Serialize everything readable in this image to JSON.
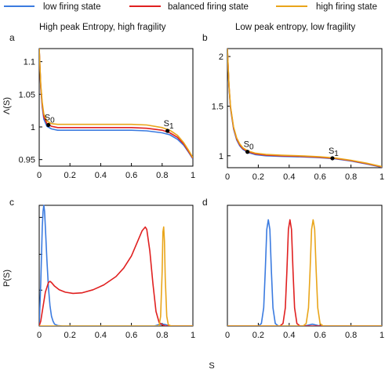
{
  "legend": [
    {
      "label": "low firing state",
      "color": "#3b7be0"
    },
    {
      "label": "balanced firing state",
      "color": "#e02020"
    },
    {
      "label": "high firing state",
      "color": "#e9a51a"
    }
  ],
  "shared_xlabel": "S",
  "chart_data": [
    {
      "panel": "a",
      "type": "line",
      "title": "High peak Entropy, high fragility",
      "ylabel": "Λ(S)",
      "xlim": [
        0,
        1
      ],
      "ylim": [
        0.94,
        1.12
      ],
      "xticks": [
        "0",
        "0.2",
        "0.4",
        "0.6",
        "0.8",
        "1"
      ],
      "yticks": [
        "0.95",
        "1",
        "1.05",
        "1.1"
      ],
      "points": [
        {
          "label": "S",
          "sub": "0",
          "x": 0.06,
          "y": 1.003
        },
        {
          "label": "S",
          "sub": "1",
          "x": 0.835,
          "y": 0.994
        }
      ],
      "series": [
        {
          "name": "low firing state",
          "color": "#3b7be0",
          "x": [
            0,
            0.01,
            0.02,
            0.03,
            0.05,
            0.08,
            0.12,
            0.2,
            0.4,
            0.6,
            0.7,
            0.8,
            0.85,
            0.9,
            0.94,
            0.97,
            1.0
          ],
          "y": [
            1.12,
            1.06,
            1.03,
            1.012,
            1.001,
            0.997,
            0.995,
            0.995,
            0.995,
            0.995,
            0.994,
            0.991,
            0.988,
            0.981,
            0.972,
            0.962,
            0.951
          ]
        },
        {
          "name": "balanced firing state",
          "color": "#e02020",
          "x": [
            0,
            0.01,
            0.02,
            0.03,
            0.05,
            0.08,
            0.12,
            0.2,
            0.4,
            0.6,
            0.7,
            0.8,
            0.85,
            0.9,
            0.94,
            0.97,
            1.0
          ],
          "y": [
            1.12,
            1.062,
            1.033,
            1.016,
            1.005,
            1.001,
            0.999,
            0.999,
            0.999,
            0.999,
            0.998,
            0.995,
            0.991,
            0.984,
            0.974,
            0.963,
            0.952
          ]
        },
        {
          "name": "high firing state",
          "color": "#e9a51a",
          "x": [
            0,
            0.01,
            0.02,
            0.03,
            0.05,
            0.08,
            0.12,
            0.2,
            0.4,
            0.6,
            0.7,
            0.8,
            0.85,
            0.9,
            0.94,
            0.97,
            1.0
          ],
          "y": [
            1.12,
            1.065,
            1.037,
            1.02,
            1.009,
            1.005,
            1.004,
            1.004,
            1.004,
            1.004,
            1.003,
            0.999,
            0.995,
            0.987,
            0.976,
            0.965,
            0.953
          ]
        }
      ]
    },
    {
      "panel": "b",
      "type": "line",
      "title": "Low peak entropy, low fragility",
      "ylabel": "",
      "xlim": [
        0,
        1
      ],
      "ylim": [
        0.88,
        2.08
      ],
      "xticks": [
        "0",
        "0.2",
        "0.4",
        "0.6",
        "0.8",
        "1"
      ],
      "yticks": [
        "1",
        "1.5",
        "2"
      ],
      "points": [
        {
          "label": "S",
          "sub": "0",
          "x": 0.13,
          "y": 1.04
        },
        {
          "label": "S",
          "sub": "1",
          "x": 0.68,
          "y": 0.975
        }
      ],
      "series": [
        {
          "name": "low firing state",
          "color": "#3b7be0",
          "x": [
            0,
            0.01,
            0.02,
            0.04,
            0.06,
            0.08,
            0.1,
            0.13,
            0.18,
            0.25,
            0.35,
            0.5,
            0.6,
            0.7,
            0.8,
            0.9,
            1.0
          ],
          "y": [
            2.08,
            1.7,
            1.48,
            1.27,
            1.16,
            1.1,
            1.065,
            1.035,
            1.012,
            1.0,
            0.994,
            0.988,
            0.981,
            0.969,
            0.947,
            0.918,
            0.885
          ]
        },
        {
          "name": "balanced firing state",
          "color": "#e02020",
          "x": [
            0,
            0.01,
            0.02,
            0.04,
            0.06,
            0.08,
            0.1,
            0.13,
            0.18,
            0.25,
            0.35,
            0.5,
            0.6,
            0.7,
            0.8,
            0.9,
            1.0
          ],
          "y": [
            2.08,
            1.71,
            1.49,
            1.28,
            1.17,
            1.11,
            1.073,
            1.043,
            1.02,
            1.007,
            1.0,
            0.993,
            0.985,
            0.973,
            0.951,
            0.922,
            0.888
          ]
        },
        {
          "name": "high firing state",
          "color": "#e9a51a",
          "x": [
            0,
            0.01,
            0.02,
            0.04,
            0.06,
            0.08,
            0.1,
            0.13,
            0.18,
            0.25,
            0.35,
            0.5,
            0.6,
            0.7,
            0.8,
            0.9,
            1.0
          ],
          "y": [
            2.08,
            1.72,
            1.5,
            1.29,
            1.18,
            1.12,
            1.081,
            1.05,
            1.027,
            1.014,
            1.006,
            0.998,
            0.99,
            0.977,
            0.955,
            0.926,
            0.891
          ]
        }
      ]
    },
    {
      "panel": "c",
      "type": "line",
      "title": "",
      "ylabel": "P(S)",
      "xlim": [
        0,
        1
      ],
      "xticks": [
        "0",
        "0.2",
        "0.4",
        "0.6",
        "0.8",
        "1"
      ],
      "yticks": [
        "",
        "",
        ""
      ],
      "series": [
        {
          "name": "low firing state",
          "color": "#3b7be0",
          "x": [
            0,
            0.01,
            0.02,
            0.025,
            0.03,
            0.035,
            0.04,
            0.05,
            0.06,
            0.07,
            0.08,
            0.09,
            0.1,
            0.12,
            0.15,
            0.2,
            0.4,
            0.6,
            0.75,
            0.78,
            0.8,
            0.82,
            0.85,
            1.0
          ],
          "y": [
            0.0,
            0.35,
            0.82,
            0.95,
            1.0,
            0.95,
            0.82,
            0.55,
            0.32,
            0.17,
            0.08,
            0.04,
            0.015,
            0.004,
            0.0,
            0.0,
            0.0,
            0.0,
            0.0,
            0.012,
            0.016,
            0.012,
            0.0,
            0.0
          ]
        },
        {
          "name": "balanced firing state",
          "color": "#e02020",
          "x": [
            0,
            0.01,
            0.02,
            0.04,
            0.06,
            0.07,
            0.08,
            0.1,
            0.13,
            0.17,
            0.22,
            0.28,
            0.35,
            0.42,
            0.5,
            0.55,
            0.6,
            0.64,
            0.67,
            0.69,
            0.7,
            0.72,
            0.74,
            0.76,
            0.78,
            0.8,
            0.82,
            0.85,
            1.0
          ],
          "y": [
            0.0,
            0.04,
            0.12,
            0.28,
            0.36,
            0.37,
            0.36,
            0.33,
            0.3,
            0.28,
            0.27,
            0.275,
            0.3,
            0.34,
            0.41,
            0.48,
            0.58,
            0.7,
            0.79,
            0.82,
            0.8,
            0.62,
            0.35,
            0.12,
            0.03,
            0.01,
            0.0,
            0.0,
            0.0
          ]
        },
        {
          "name": "high firing state",
          "color": "#e9a51a",
          "x": [
            0,
            0.7,
            0.78,
            0.79,
            0.8,
            0.805,
            0.81,
            0.815,
            0.82,
            0.83,
            0.84,
            0.86,
            1.0
          ],
          "y": [
            0.0,
            0.0,
            0.0,
            0.08,
            0.45,
            0.78,
            0.82,
            0.7,
            0.4,
            0.08,
            0.01,
            0.0,
            0.0
          ]
        }
      ]
    },
    {
      "panel": "d",
      "type": "line",
      "title": "",
      "ylabel": "",
      "xlim": [
        0,
        1
      ],
      "xticks": [
        "0",
        "0.2",
        "0.4",
        "0.6",
        "0.8",
        "1"
      ],
      "series": [
        {
          "name": "low firing state",
          "color": "#3b7be0",
          "x": [
            0,
            0.2,
            0.22,
            0.235,
            0.245,
            0.255,
            0.265,
            0.275,
            0.285,
            0.295,
            0.31,
            0.33,
            0.5,
            0.55,
            0.6,
            1.0
          ],
          "y": [
            0.0,
            0.0,
            0.02,
            0.15,
            0.45,
            0.8,
            0.88,
            0.8,
            0.45,
            0.15,
            0.02,
            0.0,
            0.0,
            0.015,
            0.0,
            0.0
          ]
        },
        {
          "name": "balanced firing state",
          "color": "#e02020",
          "x": [
            0,
            0.34,
            0.36,
            0.375,
            0.385,
            0.395,
            0.405,
            0.415,
            0.425,
            0.435,
            0.45,
            0.47,
            1.0
          ],
          "y": [
            0.0,
            0.0,
            0.02,
            0.15,
            0.45,
            0.8,
            0.88,
            0.8,
            0.45,
            0.15,
            0.02,
            0.0,
            0.0
          ]
        },
        {
          "name": "high firing state",
          "color": "#e9a51a",
          "x": [
            0,
            0.49,
            0.51,
            0.525,
            0.535,
            0.545,
            0.555,
            0.565,
            0.575,
            0.585,
            0.6,
            0.62,
            1.0
          ],
          "y": [
            0.0,
            0.0,
            0.02,
            0.15,
            0.45,
            0.8,
            0.88,
            0.8,
            0.45,
            0.15,
            0.02,
            0.0,
            0.0
          ]
        }
      ]
    }
  ]
}
